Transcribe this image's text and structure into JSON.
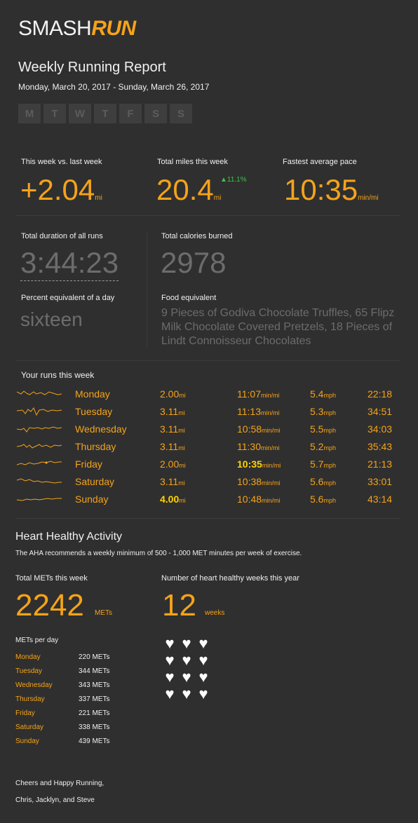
{
  "logo": {
    "part1": "SMASH",
    "part2": "RUN"
  },
  "report_title": "Weekly Running Report",
  "date_range": "Monday, March 20, 2017 - Sunday, March 26, 2017",
  "day_letters": [
    "M",
    "T",
    "W",
    "T",
    "F",
    "S",
    "S"
  ],
  "stats": {
    "vs_last_week": {
      "label": "This week vs. last week",
      "value": "+2.04",
      "unit": "mi"
    },
    "total_miles": {
      "label": "Total miles this week",
      "value": "20.4",
      "unit": "mi",
      "trend": "▲11.1%"
    },
    "fastest_pace": {
      "label": "Fastest average pace",
      "value": "10:35",
      "unit": "min/mi"
    },
    "duration": {
      "label": "Total duration of all runs",
      "value": "3:44:23"
    },
    "calories": {
      "label": "Total calories burned",
      "value": "2978"
    },
    "percent_day": {
      "label": "Percent equivalent of a day",
      "value": "sixteen"
    },
    "food": {
      "label": "Food equivalent",
      "value": "9 Pieces of Godiva Chocolate Truffles, 65 Flipz Milk Chocolate Covered Pretzels, 18 Pieces of Lindt Connoisseur Chocolates"
    }
  },
  "runs_title": "Your runs this week",
  "runs": [
    {
      "day": "Monday",
      "dist": "2.00",
      "dist_unit": "mi",
      "pace": "11:07",
      "pace_unit": "min/mi",
      "speed": "5.4",
      "speed_unit": "mph",
      "time": "22:18"
    },
    {
      "day": "Tuesday",
      "dist": "3.11",
      "dist_unit": "mi",
      "pace": "11:13",
      "pace_unit": "min/mi",
      "speed": "5.3",
      "speed_unit": "mph",
      "time": "34:51"
    },
    {
      "day": "Wednesday",
      "dist": "3.11",
      "dist_unit": "mi",
      "pace": "10:58",
      "pace_unit": "min/mi",
      "speed": "5.5",
      "speed_unit": "mph",
      "time": "34:03"
    },
    {
      "day": "Thursday",
      "dist": "3.11",
      "dist_unit": "mi",
      "pace": "11:30",
      "pace_unit": "min/mi",
      "speed": "5.2",
      "speed_unit": "mph",
      "time": "35:43"
    },
    {
      "day": "Friday",
      "dist": "2.00",
      "dist_unit": "mi",
      "pace": "10:35",
      "pace_unit": "min/mi",
      "speed": "5.7",
      "speed_unit": "mph",
      "time": "21:13"
    },
    {
      "day": "Saturday",
      "dist": "3.11",
      "dist_unit": "mi",
      "pace": "10:38",
      "pace_unit": "min/mi",
      "speed": "5.6",
      "speed_unit": "mph",
      "time": "33:01"
    },
    {
      "day": "Sunday",
      "dist": "4.00",
      "dist_unit": "mi",
      "pace": "10:48",
      "pace_unit": "min/mi",
      "speed": "5.6",
      "speed_unit": "mph",
      "time": "43:14"
    }
  ],
  "heart": {
    "title": "Heart Healthy Activity",
    "note": "The AHA recommends a weekly minimum of 500 - 1,000 MET minutes per week of exercise.",
    "total_label": "Total METs this week",
    "total_value": "2242",
    "total_unit": "METs",
    "weeks_label": "Number of heart healthy weeks this year",
    "weeks_value": "12",
    "weeks_unit": "weeks",
    "per_day_label": "METs per day",
    "per_day": [
      {
        "day": "Monday",
        "value": "220 METs"
      },
      {
        "day": "Tuesday",
        "value": "344 METs"
      },
      {
        "day": "Wednesday",
        "value": "343 METs"
      },
      {
        "day": "Thursday",
        "value": "337 METs"
      },
      {
        "day": "Friday",
        "value": "221 METs"
      },
      {
        "day": "Saturday",
        "value": "338 METs"
      },
      {
        "day": "Sunday",
        "value": "439 METs"
      }
    ],
    "hearts_count": 12
  },
  "signoff": {
    "line1": "Cheers and Happy Running,",
    "line2": "Chris, Jacklyn, and Steve"
  },
  "colors": {
    "accent": "#f5a31a",
    "highlight": "#ffd400",
    "trend_up": "#3fc14a",
    "background": "#2f2f2f"
  }
}
